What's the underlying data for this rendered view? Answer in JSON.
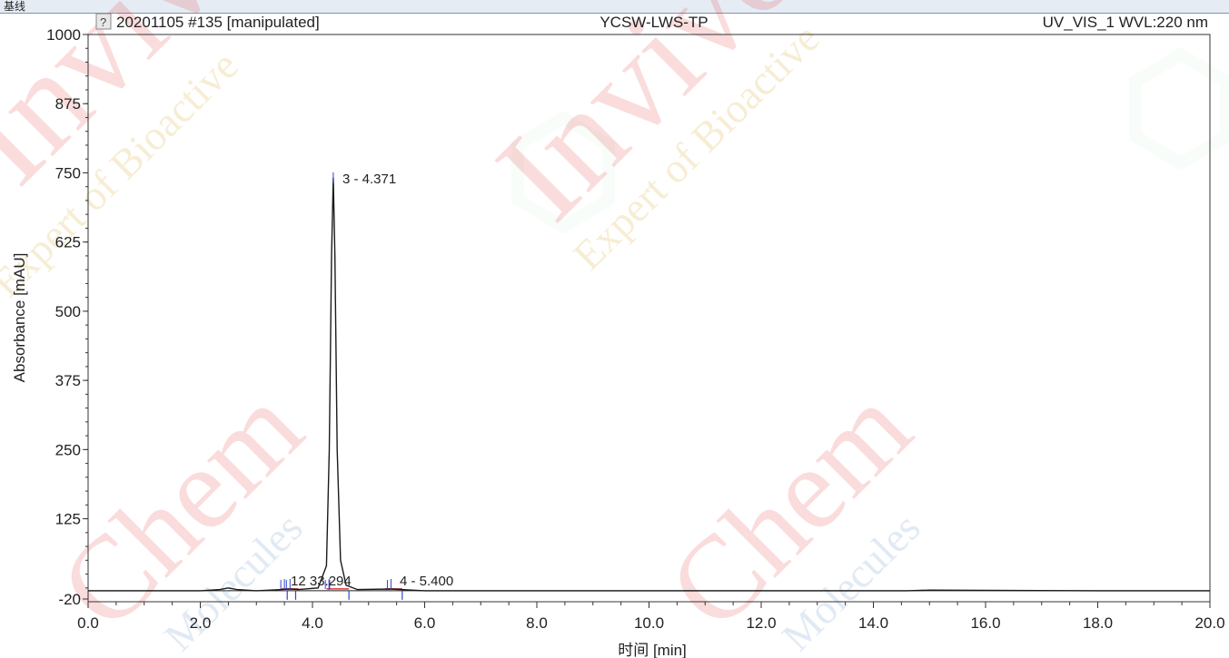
{
  "window": {
    "top_label": "基线"
  },
  "header": {
    "sample": "20201105 #135 [manipulated]",
    "method": "YCSW-LWS-TP",
    "channel": "UV_VIS_1 WVL:220 nm",
    "info_icon": "question-icon"
  },
  "watermark": {
    "brand": "InvivoChem",
    "tagline_a": "Expert of Bioactive",
    "tagline_b": "Molecules",
    "colors": {
      "red": "#e52a2a",
      "gold": "#d4a017",
      "green": "#2bb34a",
      "blue": "#4a7fc0"
    }
  },
  "chart_data": {
    "type": "line",
    "xlabel": "时间 [min]",
    "ylabel": "Absorbance [mAU]",
    "xlim": [
      0,
      20
    ],
    "ylim": [
      -20,
      1000
    ],
    "xticks": [
      "0.0",
      "2.0",
      "4.0",
      "6.0",
      "8.0",
      "10.0",
      "12.0",
      "14.0",
      "16.0",
      "18.0",
      "20.0"
    ],
    "yticks": [
      "1000",
      "875",
      "750",
      "625",
      "500",
      "375",
      "250",
      "125",
      "-20"
    ],
    "grid": false,
    "colors": {
      "trace": "#1a1a1a",
      "baseline": "#e03030",
      "marker": "#3344cc",
      "frame": "#333333"
    },
    "series": [
      {
        "x": [
          0.0,
          1.0,
          2.0,
          2.35,
          2.5,
          2.65,
          3.0,
          3.45,
          3.6,
          3.75,
          4.1,
          4.25,
          4.3,
          4.34,
          4.371,
          4.4,
          4.44,
          4.5,
          4.6,
          4.8,
          5.4,
          6.0,
          10.0,
          14.6,
          15.0,
          18.0,
          20.0
        ],
        "y": [
          -5,
          -5,
          -5,
          -3,
          0,
          -3,
          -5,
          -3,
          -2,
          -3,
          0,
          40,
          250,
          600,
          741,
          600,
          250,
          50,
          5,
          -3,
          -2,
          -5,
          -5,
          -5,
          -4,
          -5,
          -5
        ]
      }
    ],
    "baseline": {
      "y": -5
    },
    "peaks": [
      {
        "number": 1,
        "rt": 3.5,
        "label": "1"
      },
      {
        "number": 2,
        "rt": 3.6,
        "label": "2 - 3.6"
      },
      {
        "number": 5,
        "rt": 4.294,
        "label": "5 - 4.294"
      },
      {
        "number": 3,
        "rt": 4.371,
        "label": "3 - 4.371"
      },
      {
        "number": 4,
        "rt": 5.4,
        "label": "4 - 5.400"
      }
    ],
    "label_texts": {
      "p12": "12 33.294",
      "p3": "3 - 4.371",
      "p4": "4 - 5.400"
    }
  }
}
